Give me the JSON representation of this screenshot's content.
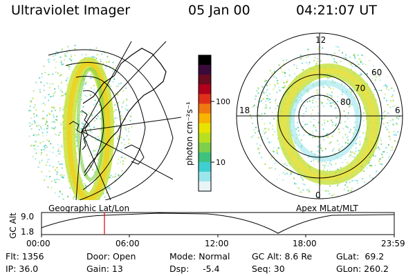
{
  "header": {
    "title": "Ultraviolet Imager",
    "date": "05 Jan 00",
    "time": "04:21:07 UT"
  },
  "colorbar": {
    "unit_label": "photon cm⁻²s⁻¹",
    "ticks": [
      "100",
      "10"
    ],
    "colors": [
      "#000000",
      "#3a0a3a",
      "#6a0b20",
      "#b0001a",
      "#e0301a",
      "#f07810",
      "#f8b400",
      "#e8e400",
      "#b8e020",
      "#7ed04a",
      "#3ec27e",
      "#40cfd0",
      "#9ae6ec",
      "#e8f4f6"
    ]
  },
  "left_panel": {
    "caption": "Geographic Lat/Lon"
  },
  "right_panel": {
    "caption": "Apex MLat/MLT",
    "mlt_labels": {
      "top": "12",
      "left": "18",
      "right": "6",
      "bottom": "0"
    },
    "lat_labels": [
      "60",
      "70",
      "80"
    ]
  },
  "altitude_plot": {
    "ylabel": "GC Alt",
    "y_ticks": [
      "9.0",
      "1.8"
    ],
    "x_ticks": [
      "00:00",
      "06:00",
      "12:00",
      "18:00",
      "23:59"
    ],
    "marker_color": "#e00000"
  },
  "status": {
    "flt": "Flt: 1356",
    "door": "Door: Open",
    "mode": "Mode: Normal",
    "gc_alt": "GC Alt: 8.6 Re",
    "glat": "GLat:  69.2",
    "ip": "IP: 36.0",
    "gain": "Gain: 13",
    "dsp": "Dsp:     -5.4",
    "seq": "Seq: 30",
    "glon": "GLon: 260.2"
  }
}
